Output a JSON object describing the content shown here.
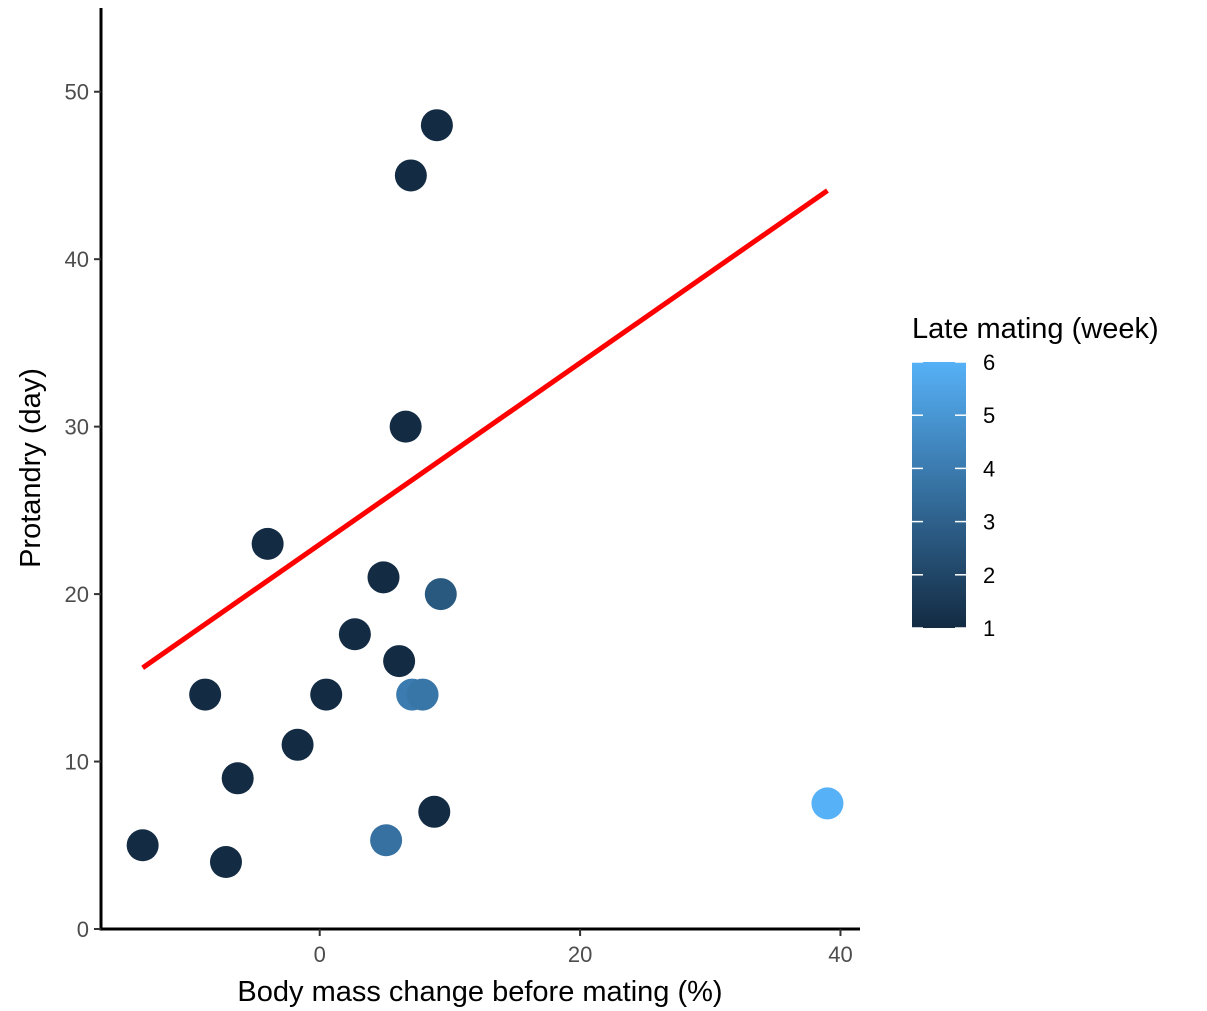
{
  "chart_data": {
    "type": "scatter",
    "xlabel": "Body mass change before mating (%)",
    "ylabel": "Protandry (day)",
    "xlim": [
      -16.8,
      41.5
    ],
    "ylim": [
      0,
      55
    ],
    "xticks": [
      0,
      20,
      40
    ],
    "yticks": [
      0,
      10,
      20,
      30,
      40,
      50
    ],
    "grid": false,
    "legend": {
      "title": "Late mating (week)",
      "type": "colorbar",
      "placement": "right",
      "ticks": [
        1,
        2,
        3,
        4,
        5,
        6
      ],
      "range": [
        1,
        6
      ],
      "color_low": "#132b43",
      "color_high": "#56b1f7"
    },
    "points": [
      {
        "x": 9.0,
        "y": 48.0,
        "week": 1
      },
      {
        "x": 7.0,
        "y": 45.0,
        "week": 1
      },
      {
        "x": 6.6,
        "y": 30.0,
        "week": 1
      },
      {
        "x": -4.0,
        "y": 23.0,
        "week": 1
      },
      {
        "x": 4.9,
        "y": 21.0,
        "week": 1
      },
      {
        "x": 9.3,
        "y": 20.0,
        "week": 2.7
      },
      {
        "x": 2.7,
        "y": 17.6,
        "week": 1
      },
      {
        "x": 6.1,
        "y": 16.0,
        "week": 1
      },
      {
        "x": -8.8,
        "y": 14.0,
        "week": 1
      },
      {
        "x": 0.5,
        "y": 14.0,
        "week": 1
      },
      {
        "x": 7.1,
        "y": 14.0,
        "week": 4
      },
      {
        "x": 7.9,
        "y": 14.0,
        "week": 3.8
      },
      {
        "x": -1.7,
        "y": 11.0,
        "week": 1
      },
      {
        "x": -6.3,
        "y": 9.0,
        "week": 1
      },
      {
        "x": 8.8,
        "y": 7.0,
        "week": 1
      },
      {
        "x": 39.0,
        "y": 7.5,
        "week": 6
      },
      {
        "x": 5.1,
        "y": 5.3,
        "week": 3.6
      },
      {
        "x": -13.6,
        "y": 5.0,
        "week": 1
      },
      {
        "x": -7.2,
        "y": 4.0,
        "week": 1
      }
    ],
    "trend_line": {
      "color": "#ff0000",
      "x": [
        -13.6,
        39.0
      ],
      "y": [
        15.6,
        44.1
      ]
    }
  }
}
